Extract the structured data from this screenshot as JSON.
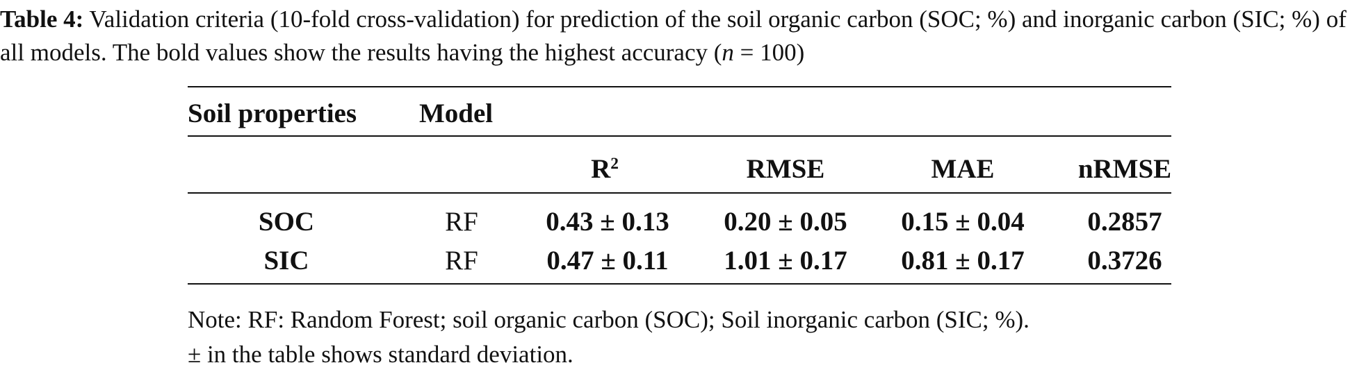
{
  "caption": {
    "label": "Table 4:",
    "text_before_n": "Validation criteria (10-fold cross-validation) for prediction of the soil organic carbon (SOC; %) and inorganic carbon (SIC; %) of all models. The bold values show the results having the highest accuracy (",
    "n_symbol": "n",
    "text_after_n": " = 100)"
  },
  "table": {
    "header_row1": {
      "soil_properties": "Soil properties",
      "model": "Model"
    },
    "header_row2": {
      "r2_base": "R",
      "r2_exp": "2",
      "rmse": "RMSE",
      "mae": "MAE",
      "nrmse": "nRMSE"
    },
    "rows": [
      {
        "property": "SOC",
        "model": "RF",
        "r2": "0.43 ± 0.13",
        "rmse": "0.20 ± 0.05",
        "mae": "0.15 ± 0.04",
        "nrmse": "0.2857"
      },
      {
        "property": "SIC",
        "model": "RF",
        "r2": "0.47 ± 0.11",
        "rmse": "1.01 ± 0.17",
        "mae": "0.81 ± 0.17",
        "nrmse": "0.3726"
      }
    ]
  },
  "note": {
    "line1": "Note: RF: Random Forest; soil organic carbon (SOC); Soil inorganic carbon (SIC; %).",
    "line2": "± in the table shows standard deviation."
  }
}
